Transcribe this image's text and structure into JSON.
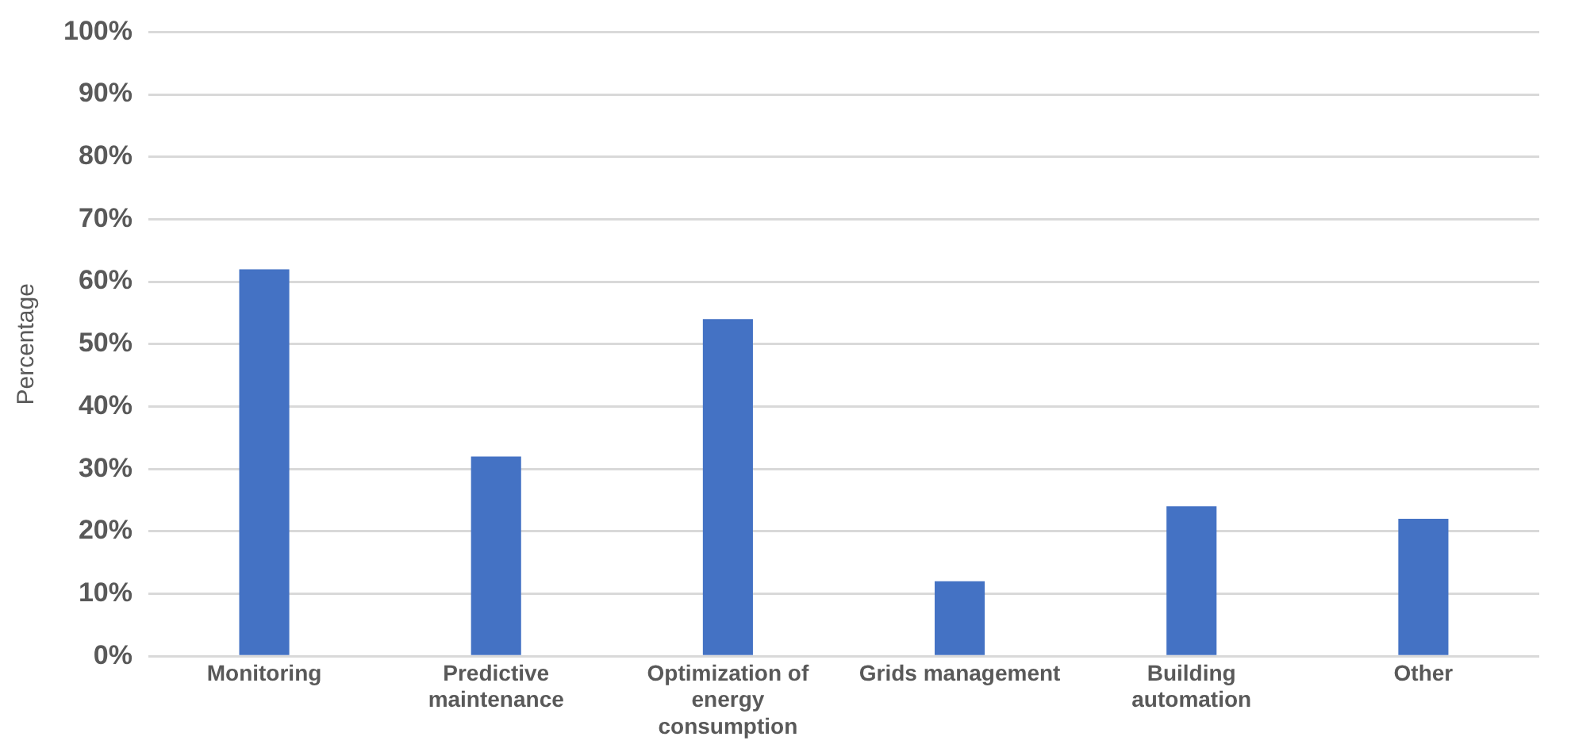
{
  "chart_data": {
    "type": "bar",
    "ylabel": "Percentage",
    "categories": [
      "Monitoring",
      "Predictive maintenance",
      "Optimization of energy consumption",
      "Grids management",
      "Building automation",
      "Other"
    ],
    "values": [
      62,
      32,
      54,
      12,
      24,
      22
    ],
    "color": "#4472c4",
    "ylim": [
      0,
      100
    ],
    "yticks": [
      {
        "value": 0,
        "label": "0%"
      },
      {
        "value": 10,
        "label": "10%"
      },
      {
        "value": 20,
        "label": "20%"
      },
      {
        "value": 30,
        "label": "30%"
      },
      {
        "value": 40,
        "label": "40%"
      },
      {
        "value": 50,
        "label": "50%"
      },
      {
        "value": 60,
        "label": "60%"
      },
      {
        "value": 70,
        "label": "70%"
      },
      {
        "value": 80,
        "label": "80%"
      },
      {
        "value": 90,
        "label": "90%"
      },
      {
        "value": 100,
        "label": "100%"
      }
    ],
    "grid": "y",
    "legend": false
  }
}
